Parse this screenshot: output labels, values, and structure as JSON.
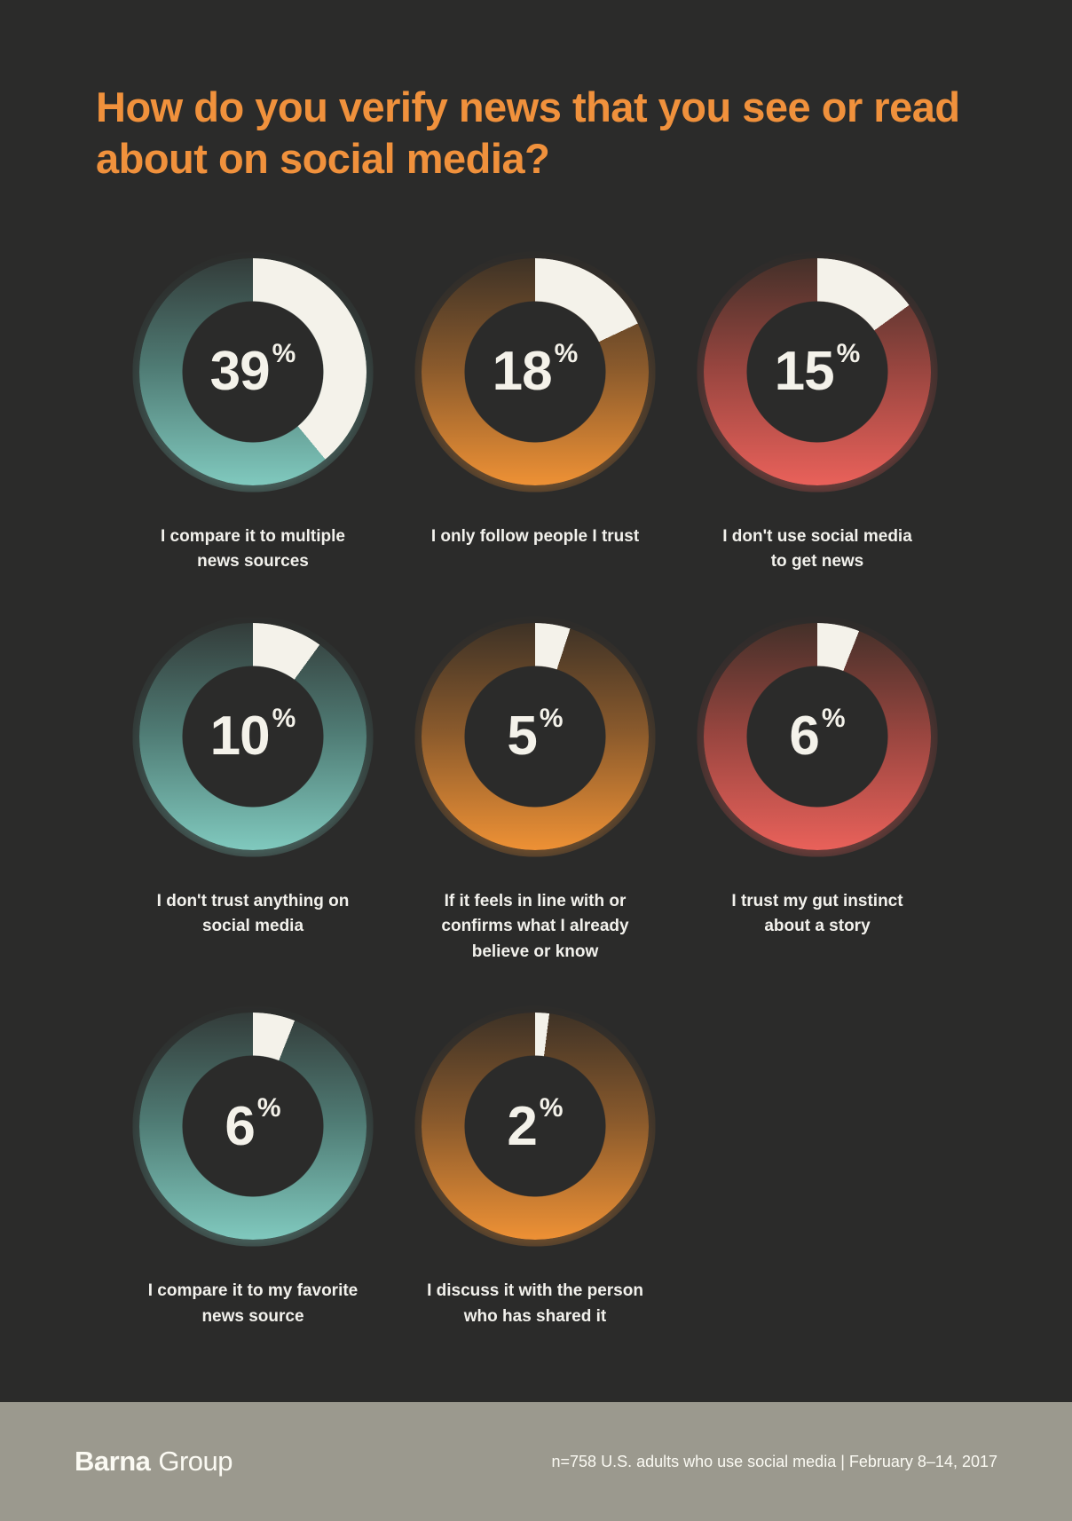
{
  "title_lines": [
    "How do you verify news that you see",
    "or read about on social media?"
  ],
  "chart_data": {
    "type": "donut",
    "title": "How do you verify news that you see or read about on social media?",
    "unit": "%",
    "items": [
      {
        "value": 39,
        "label": "I compare it to multiple news sources",
        "label_lines": [
          "I compare it to multiple",
          "news sources"
        ],
        "palette": "teal"
      },
      {
        "value": 18,
        "label": "I only follow people I trust",
        "label_lines": [
          "I only follow people I trust"
        ],
        "palette": "orange"
      },
      {
        "value": 15,
        "label": "I don't use social media to get news",
        "label_lines": [
          "I don't use social media",
          "to get news"
        ],
        "palette": "red"
      },
      {
        "value": 10,
        "label": "I don't trust anything on social media",
        "label_lines": [
          "I don't trust anything on",
          "social media"
        ],
        "palette": "teal"
      },
      {
        "value": 5,
        "label": "If it feels in line with or confirms what I already believe or know",
        "label_lines": [
          "If it feels in line with or",
          "confirms what I already",
          "believe or know"
        ],
        "palette": "orange"
      },
      {
        "value": 6,
        "label": "I trust my gut instinct about a story",
        "label_lines": [
          "I trust my gut instinct",
          "about a story"
        ],
        "palette": "red"
      },
      {
        "value": 6,
        "label": "I compare it to my favorite news source",
        "label_lines": [
          "I compare it to my favorite",
          "news source"
        ],
        "palette": "teal"
      },
      {
        "value": 2,
        "label": "I discuss it with the person who has shared it",
        "label_lines": [
          "I discuss it with the person",
          "who has shared it"
        ],
        "palette": "orange"
      }
    ]
  },
  "palettes": {
    "teal": {
      "dark": "#333c3a",
      "mid": "#4f7b74",
      "bright": "#80c9be"
    },
    "orange": {
      "dark": "#3e3226",
      "mid": "#8a5a2c",
      "bright": "#ee9135"
    },
    "red": {
      "dark": "#443029",
      "mid": "#97453f",
      "bright": "#e9615a"
    }
  },
  "colors": {
    "background": "#2b2b2a",
    "title": "#f0913c",
    "segment_white": "#f4f2ea",
    "label_text": "#f2f1ec",
    "footer_background": "#9b998e",
    "footer_text": "#fbfaf3"
  },
  "footer": {
    "brand_bold": "Barna",
    "brand_light": "Group",
    "note": "n=758 U.S. adults who use social media | February 8–14, 2017"
  }
}
